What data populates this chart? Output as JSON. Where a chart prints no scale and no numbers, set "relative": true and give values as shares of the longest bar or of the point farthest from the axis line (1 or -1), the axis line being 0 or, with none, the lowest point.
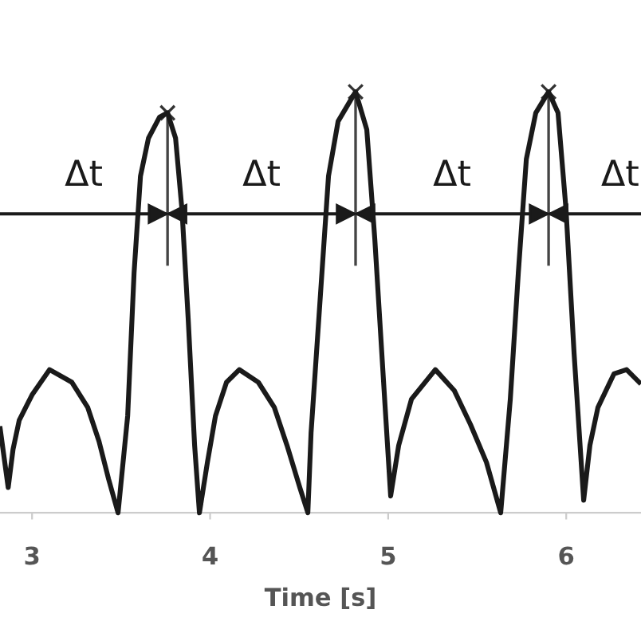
{
  "chart_data": {
    "type": "line",
    "relative": true,
    "xlabel": "Time [s]",
    "xlim": [
      2.82,
      6.42
    ],
    "xticks": [
      3,
      4,
      5,
      6
    ],
    "grid": false,
    "tick_labels": "x",
    "series": [
      {
        "color": "#1a1a1a",
        "x": [
          2.821,
          2.866,
          2.893,
          2.928,
          3.0,
          3.098,
          3.224,
          3.313,
          3.376,
          3.43,
          3.483,
          3.537,
          3.573,
          3.609,
          3.654,
          3.716,
          3.761,
          3.806,
          3.842,
          3.877,
          3.913,
          3.94,
          3.985,
          4.03,
          4.092,
          4.164,
          4.271,
          4.361,
          4.432,
          4.504,
          4.549,
          4.567,
          4.62,
          4.665,
          4.719,
          4.817,
          4.88,
          4.925,
          4.97,
          5.014,
          5.059,
          5.131,
          5.265,
          5.372,
          5.462,
          5.552,
          5.632,
          5.686,
          5.731,
          5.776,
          5.829,
          5.901,
          5.954,
          5.999,
          6.044,
          6.098,
          6.133,
          6.178,
          6.268,
          6.339,
          6.41
        ],
        "values": [
          0.2,
          0.06,
          0.15,
          0.22,
          0.28,
          0.34,
          0.31,
          0.25,
          0.17,
          0.08,
          0.0,
          0.23,
          0.57,
          0.8,
          0.89,
          0.94,
          0.95,
          0.89,
          0.72,
          0.46,
          0.16,
          0.0,
          0.12,
          0.23,
          0.31,
          0.34,
          0.31,
          0.25,
          0.16,
          0.06,
          0.0,
          0.19,
          0.52,
          0.8,
          0.93,
          1.0,
          0.91,
          0.65,
          0.34,
          0.04,
          0.16,
          0.27,
          0.34,
          0.29,
          0.21,
          0.12,
          0.0,
          0.27,
          0.57,
          0.84,
          0.95,
          1.0,
          0.95,
          0.72,
          0.38,
          0.03,
          0.16,
          0.25,
          0.33,
          0.34,
          0.31
        ]
      },
      {
        "type": "scatter",
        "color": "#333333",
        "marker": "cross",
        "x": [
          3.761,
          4.817,
          5.901
        ],
        "values": [
          0.95,
          1.0,
          1.0
        ]
      }
    ],
    "ref_lines": [
      {
        "axis": "y",
        "value": 0.71,
        "color": "#1a1a1a"
      }
    ],
    "annotations": [
      "Δt",
      "Δt",
      "Δt",
      "Δt"
    ]
  }
}
